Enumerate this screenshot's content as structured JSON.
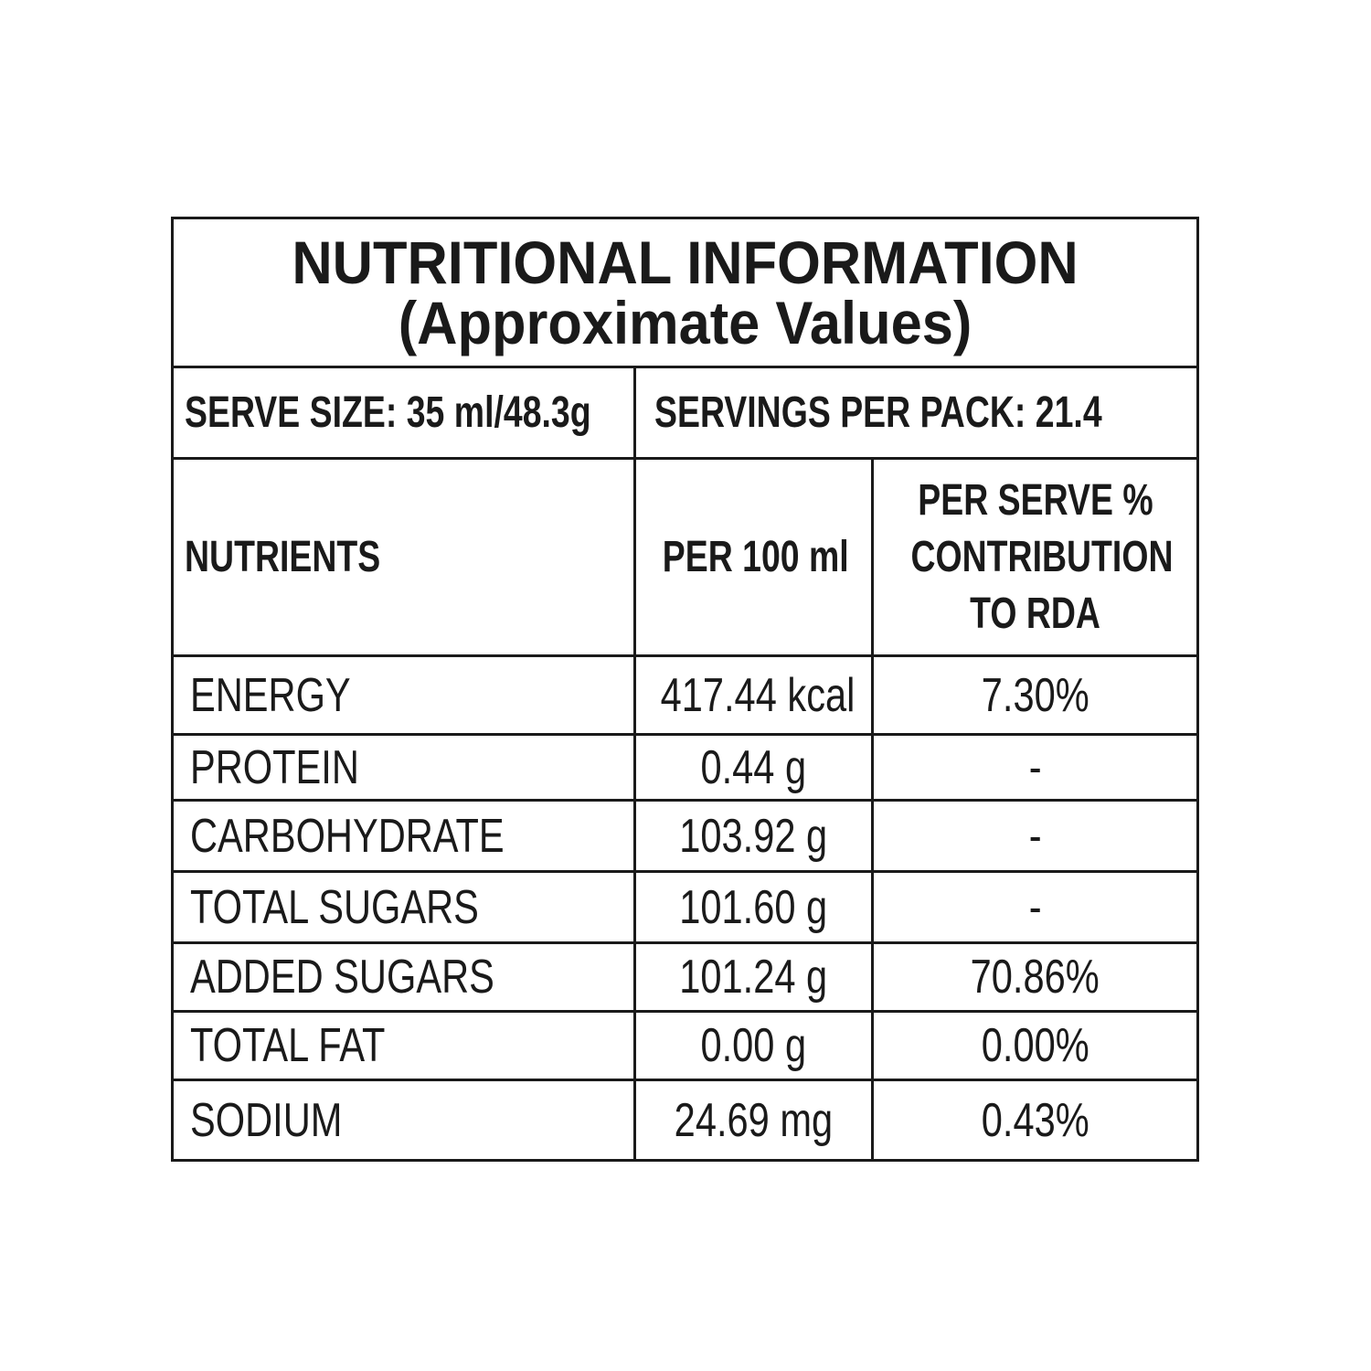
{
  "title": {
    "line1": "NUTRITIONAL INFORMATION",
    "line2": "(Approximate Values)"
  },
  "serve": {
    "size": "SERVE SIZE: 35 ml/48.3g",
    "per_pack": "SERVINGS PER PACK: 21.4"
  },
  "headers": {
    "nutrients": "NUTRIENTS",
    "per_100": "PER 100 ml",
    "rda_line1": "PER SERVE %",
    "rda_line2": "CONTRIBUTION",
    "rda_line3": "TO RDA"
  },
  "rows": [
    {
      "nutrient": "ENERGY",
      "per_100": "417.44 kcal",
      "rda": "7.30%"
    },
    {
      "nutrient": "PROTEIN",
      "per_100": "0.44 g",
      "rda": "-"
    },
    {
      "nutrient": "CARBOHYDRATE",
      "per_100": "103.92 g",
      "rda": "-"
    },
    {
      "nutrient": "TOTAL SUGARS",
      "per_100": "101.60 g",
      "rda": "-"
    },
    {
      "nutrient": "ADDED SUGARS",
      "per_100": "101.24 g",
      "rda": "70.86%"
    },
    {
      "nutrient": "TOTAL FAT",
      "per_100": "0.00 g",
      "rda": "0.00%"
    },
    {
      "nutrient": "SODIUM",
      "per_100": "24.69 mg",
      "rda": "0.43%"
    }
  ]
}
